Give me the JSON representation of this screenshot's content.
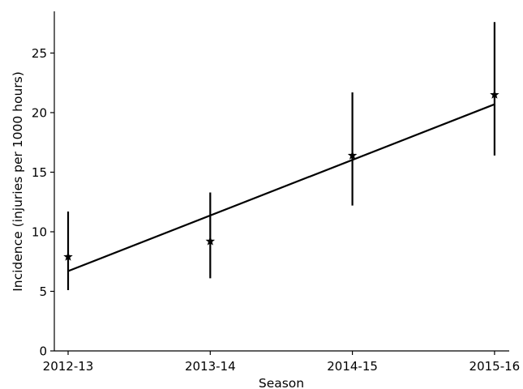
{
  "chart_data": {
    "type": "scatter",
    "title": "",
    "xlabel": "Season",
    "ylabel": "Incidence (injuries per 1000 hours)",
    "categories": [
      "2012-13",
      "2013-14",
      "2014-15",
      "2015-16"
    ],
    "series": [
      {
        "marker": "star",
        "color": "#000000",
        "values": [
          7.9,
          9.2,
          16.4,
          21.5
        ],
        "error_low": [
          5.1,
          6.1,
          12.2,
          16.4
        ],
        "error_high": [
          11.7,
          13.3,
          21.7,
          27.6
        ]
      }
    ],
    "trend_line": {
      "start": 6.7,
      "end": 20.7,
      "color": "#000000"
    },
    "ylim": [
      0,
      28.5
    ],
    "yticks": [
      0,
      5,
      10,
      15,
      20,
      25
    ],
    "grid": false
  }
}
